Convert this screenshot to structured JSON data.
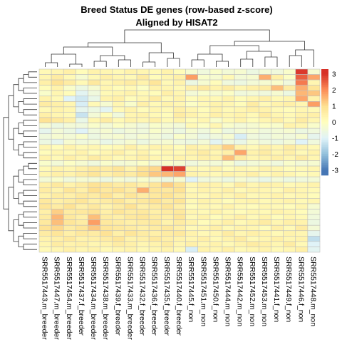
{
  "chart_data": {
    "type": "heatmap",
    "title": "Breed Status DE genes (row-based z-score)",
    "subtitle": "Aligned by HISAT2",
    "columns": [
      "SRR5517443.m_breeder",
      "SRR5517447.m_breeder",
      "SRR5517454.m_breeder",
      "SRR5517437.f_breeder",
      "SRR5517434.m_breeder",
      "SRR5517438.m_breeder",
      "SRR5517439.f_breeder",
      "SRR5517433.m_breeder",
      "SRR5517432.f_breeder",
      "SRR5517436.f_breeder",
      "SRR5517435.f_breeder",
      "SRR5517440.f_breeder",
      "SRR5517445.f_non",
      "SRR5517451.m_non",
      "SRR5517450.f_non",
      "SRR5517444.m_non",
      "SRR5517442.m_non",
      "SRR5517452.m_non",
      "SRR5517453.m_non",
      "SRR5517441.f_non",
      "SRR5517449.f_non",
      "SRR5517446.f_non",
      "SRR5517448.m_non"
    ],
    "n_rows": 34,
    "values": [
      [
        0.2,
        0.3,
        0.5,
        0.1,
        0.4,
        0.3,
        0.2,
        0.4,
        0.3,
        0.2,
        0.4,
        0.1,
        -0.3,
        -0.5,
        -0.2,
        -0.4,
        -0.3,
        -0.6,
        -0.4,
        -0.5,
        -0.2,
        2.9,
        -0.3
      ],
      [
        0.3,
        0.6,
        0.2,
        -0.3,
        0.2,
        0.5,
        0.3,
        0.2,
        0.6,
        0.1,
        0.3,
        0.5,
        1.8,
        -0.2,
        -0.3,
        0.2,
        -0.4,
        -0.3,
        1.6,
        0.5,
        -0.1,
        2.5,
        1.7
      ],
      [
        0.5,
        0.9,
        0.6,
        0.2,
        0.7,
        0.3,
        0.5,
        0.6,
        0.4,
        0.8,
        0.2,
        0.4,
        -0.6,
        -0.3,
        0.1,
        -0.5,
        -0.6,
        -0.4,
        -0.3,
        -0.2,
        -0.5,
        2.2,
        0.3
      ],
      [
        0.1,
        0.4,
        -0.2,
        -0.6,
        -0.3,
        0.3,
        0.1,
        0.2,
        -0.1,
        0.4,
        0.3,
        0.2,
        0.5,
        0.7,
        0.4,
        0.6,
        0.3,
        0.5,
        0.6,
        1.4,
        0.6,
        1.6,
        0.8
      ],
      [
        -0.2,
        0.3,
        0.1,
        -0.9,
        -0.5,
        0.2,
        0.3,
        0.4,
        0.2,
        0.1,
        0.5,
        0.3,
        -0.4,
        -0.2,
        -0.3,
        -0.1,
        -0.5,
        -0.4,
        -0.5,
        -0.3,
        -0.6,
        1.5,
        1.3
      ],
      [
        0.4,
        0.2,
        -1.0,
        -1.2,
        -0.7,
        0.4,
        0.5,
        0.1,
        0.3,
        0.6,
        0.2,
        0.4,
        0.1,
        0.3,
        0.2,
        0.4,
        0.1,
        0.3,
        0.5,
        0.2,
        0.3,
        1.7,
        0.4
      ],
      [
        0.6,
        0.5,
        0.3,
        -1.1,
        0.2,
        -0.3,
        0.3,
        -0.2,
        0.5,
        0.2,
        0.4,
        0.3,
        -0.1,
        0.2,
        0.4,
        0.3,
        0.1,
        0.6,
        0.2,
        0.4,
        0.5,
        0.3,
        1.8
      ],
      [
        0.2,
        0.4,
        0.3,
        -0.8,
        -0.6,
        -0.9,
        0.2,
        0.4,
        0.1,
        0.3,
        0.2,
        0.5,
        0.3,
        0.1,
        0.4,
        0.2,
        0.3,
        0.5,
        0.4,
        0.2,
        0.1,
        0.3,
        0.2
      ],
      [
        0.5,
        0.3,
        0.2,
        -1.3,
        -0.4,
        0.1,
        -0.5,
        0.3,
        0.4,
        0.2,
        0.1,
        0.6,
        0.4,
        0.2,
        0.5,
        0.3,
        0.4,
        0.2,
        0.6,
        0.3,
        0.2,
        0.4,
        0.5
      ],
      [
        0.9,
        0.7,
        0.5,
        -0.7,
        0.3,
        0.6,
        0.2,
        0.4,
        0.3,
        0.5,
        0.2,
        0.4,
        0.1,
        0.3,
        -0.2,
        0.2,
        0.4,
        0.1,
        0.3,
        0.5,
        0.2,
        0.6,
        0.3
      ],
      [
        -0.3,
        -0.6,
        -0.4,
        -0.5,
        -0.2,
        -0.4,
        -0.1,
        -0.3,
        -0.5,
        -0.2,
        -0.3,
        -0.4,
        0.2,
        -0.1,
        0.3,
        -0.2,
        -0.4,
        -0.3,
        -0.1,
        -0.2,
        0.4,
        0.3,
        -0.2
      ],
      [
        -0.8,
        -0.4,
        -0.6,
        -1.0,
        -0.5,
        -0.3,
        -0.6,
        -0.4,
        -0.5,
        -0.2,
        -0.4,
        -0.6,
        -0.3,
        -0.5,
        -0.2,
        -0.6,
        -0.4,
        -0.3,
        -0.5,
        -0.4,
        -0.3,
        -0.6,
        -0.5
      ],
      [
        -0.5,
        -0.3,
        -0.4,
        -0.2,
        -0.6,
        -0.4,
        -0.3,
        -0.5,
        -0.3,
        -0.4,
        -0.6,
        -0.2,
        -0.4,
        -0.7,
        -0.5,
        -0.3,
        -1.1,
        -0.5,
        -0.6,
        -0.4,
        -0.5,
        -0.3,
        -0.8
      ],
      [
        -0.6,
        -0.8,
        -0.3,
        -0.5,
        -0.4,
        -0.7,
        -0.5,
        -0.3,
        -0.6,
        -0.4,
        -0.3,
        -0.5,
        -0.6,
        -0.4,
        -0.9,
        -0.5,
        -0.7,
        -0.3,
        -0.5,
        -0.6,
        -0.4,
        -1.0,
        -0.5
      ],
      [
        0.3,
        0.1,
        0.4,
        0.2,
        0.3,
        0.1,
        0.2,
        0.5,
        0.2,
        0.4,
        0.3,
        0.1,
        0.5,
        0.3,
        0.6,
        1.2,
        0.4,
        0.2,
        0.5,
        0.3,
        0.6,
        0.4,
        0.2
      ],
      [
        0.1,
        0.3,
        0.2,
        0.4,
        0.1,
        0.3,
        0.5,
        0.2,
        0.4,
        0.1,
        0.3,
        0.2,
        0.4,
        0.6,
        0.3,
        0.5,
        1.7,
        0.4,
        0.6,
        0.3,
        0.5,
        0.2,
        0.4
      ],
      [
        0.4,
        0.2,
        0.5,
        0.3,
        0.6,
        0.4,
        0.2,
        0.3,
        0.5,
        0.3,
        0.2,
        0.4,
        0.3,
        0.5,
        0.4,
        1.4,
        0.6,
        0.3,
        0.4,
        0.5,
        0.3,
        0.6,
        0.3
      ],
      [
        -0.2,
        -0.4,
        -0.1,
        -0.3,
        -0.5,
        -0.2,
        -0.4,
        -0.3,
        -0.1,
        -0.4,
        -0.2,
        -0.3,
        -0.5,
        -0.3,
        -0.4,
        -0.2,
        -0.6,
        -0.4,
        -0.3,
        -0.5,
        -0.2,
        -0.4,
        -0.3
      ],
      [
        0.2,
        0.4,
        0.3,
        0.5,
        0.7,
        0.6,
        0.8,
        0.4,
        0.9,
        1.1,
        3.2,
        2.8,
        0.3,
        0.2,
        0.4,
        0.1,
        0.3,
        0.2,
        0.4,
        0.3,
        0.1,
        0.2,
        0.3
      ],
      [
        0.3,
        0.5,
        0.4,
        0.6,
        0.8,
        0.5,
        0.7,
        0.6,
        1.0,
        1.3,
        1.5,
        1.7,
        0.4,
        0.3,
        0.2,
        0.4,
        0.3,
        0.5,
        0.2,
        0.4,
        0.3,
        0.1,
        0.2
      ],
      [
        -0.4,
        -0.2,
        -0.5,
        -0.3,
        -0.4,
        -0.6,
        -0.3,
        -0.5,
        -0.2,
        -0.4,
        -0.6,
        -0.3,
        -1.0,
        -0.5,
        -0.4,
        -0.6,
        -0.3,
        -0.5,
        -0.7,
        -0.4,
        -0.6,
        -0.5,
        -0.4
      ],
      [
        0.5,
        0.7,
        0.4,
        0.6,
        0.9,
        0.8,
        0.6,
        0.7,
        0.5,
        0.8,
        1.2,
        0.9,
        0.3,
        0.5,
        0.4,
        0.2,
        0.6,
        0.3,
        0.5,
        0.4,
        0.2,
        0.3,
        0.4
      ],
      [
        0.6,
        0.4,
        0.8,
        0.5,
        1.0,
        0.7,
        0.9,
        0.6,
        1.6,
        0.8,
        0.7,
        0.9,
        0.2,
        0.4,
        0.3,
        0.5,
        0.2,
        0.4,
        0.3,
        0.2,
        0.5,
        0.3,
        0.2
      ],
      [
        0.4,
        0.6,
        0.5,
        0.7,
        0.6,
        0.9,
        0.5,
        0.8,
        0.6,
        0.7,
        0.9,
        0.6,
        0.3,
        0.2,
        0.4,
        0.3,
        0.5,
        0.2,
        0.3,
        0.4,
        0.2,
        0.3,
        0.1
      ],
      [
        0.7,
        0.5,
        0.6,
        0.8,
        0.5,
        0.6,
        0.8,
        0.5,
        0.7,
        0.9,
        0.6,
        0.8,
        0.2,
        0.4,
        0.3,
        0.1,
        0.3,
        0.4,
        0.2,
        0.3,
        0.4,
        0.2,
        0.3
      ],
      [
        0.8,
        0.6,
        0.9,
        0.5,
        0.7,
        0.4,
        0.6,
        0.9,
        0.5,
        0.6,
        0.8,
        0.5,
        0.1,
        0.3,
        0.2,
        0.4,
        0.2,
        0.1,
        0.3,
        0.2,
        0.1,
        0.3,
        -0.3
      ],
      [
        0.5,
        1.2,
        0.6,
        0.7,
        0.9,
        0.5,
        0.8,
        0.6,
        0.7,
        0.5,
        0.6,
        0.7,
        0.3,
        0.2,
        0.4,
        0.2,
        0.1,
        0.3,
        0.2,
        0.4,
        0.3,
        0.1,
        -0.4
      ],
      [
        0.6,
        1.5,
        0.7,
        0.5,
        1.4,
        0.6,
        0.5,
        0.7,
        0.8,
        0.6,
        0.5,
        0.8,
        0.2,
        0.4,
        0.1,
        0.3,
        0.5,
        0.2,
        0.4,
        0.1,
        0.3,
        0.2,
        -0.5
      ],
      [
        0.7,
        1.4,
        0.8,
        0.6,
        1.8,
        0.7,
        0.6,
        0.5,
        0.6,
        0.7,
        0.4,
        0.6,
        0.4,
        0.1,
        0.3,
        0.5,
        0.2,
        0.4,
        0.6,
        0.3,
        0.5,
        0.4,
        -0.6
      ],
      [
        0.9,
        1.1,
        0.6,
        0.8,
        1.3,
        0.8,
        0.7,
        0.6,
        0.5,
        0.6,
        0.7,
        0.5,
        0.2,
        0.3,
        0.5,
        0.2,
        0.4,
        0.3,
        0.1,
        0.5,
        0.2,
        0.6,
        -0.4
      ],
      [
        0.6,
        0.8,
        0.5,
        0.7,
        0.6,
        0.9,
        0.5,
        0.8,
        0.6,
        0.5,
        0.6,
        0.7,
        0.4,
        0.2,
        0.3,
        0.6,
        0.3,
        0.5,
        0.4,
        0.2,
        0.4,
        0.3,
        -0.8
      ],
      [
        0.4,
        0.5,
        0.7,
        0.4,
        0.5,
        0.6,
        0.8,
        0.4,
        0.5,
        0.7,
        0.5,
        0.4,
        0.3,
        0.5,
        0.2,
        0.4,
        0.6,
        0.2,
        0.3,
        0.5,
        0.3,
        0.4,
        -1.4
      ],
      [
        0.3,
        0.6,
        0.4,
        0.5,
        0.3,
        0.4,
        0.6,
        0.5,
        0.3,
        0.4,
        0.6,
        0.3,
        0.5,
        0.3,
        0.4,
        0.2,
        0.4,
        0.6,
        0.5,
        0.3,
        0.6,
        0.2,
        -1.0
      ],
      [
        0.2,
        0.3,
        0.5,
        0.3,
        0.4,
        0.2,
        0.3,
        0.4,
        0.2,
        0.3,
        0.4,
        0.2,
        -1.1,
        0.4,
        0.3,
        0.5,
        0.2,
        0.3,
        0.4,
        0.2,
        0.3,
        0.5,
        -0.9
      ]
    ],
    "color_scale": {
      "stops": [
        {
          "value": -3,
          "color": "#4575b4"
        },
        {
          "value": -2,
          "color": "#91bfdb"
        },
        {
          "value": -1,
          "color": "#e0f3f8"
        },
        {
          "value": 0,
          "color": "#ffffbf"
        },
        {
          "value": 1,
          "color": "#fee090"
        },
        {
          "value": 2,
          "color": "#fc8d59"
        },
        {
          "value": 3,
          "color": "#d73027"
        }
      ]
    },
    "legend": {
      "ticks": [
        3,
        2,
        1,
        0,
        -1,
        -2,
        -3
      ],
      "tick_labels": [
        "3",
        "2",
        "1",
        "0",
        "-1",
        "-2",
        "-3"
      ],
      "range": [
        -3.3,
        3.3
      ],
      "placement": "right"
    },
    "cell_border_color": "#bfbfbf",
    "dendrograms": [
      "top",
      "left"
    ]
  }
}
